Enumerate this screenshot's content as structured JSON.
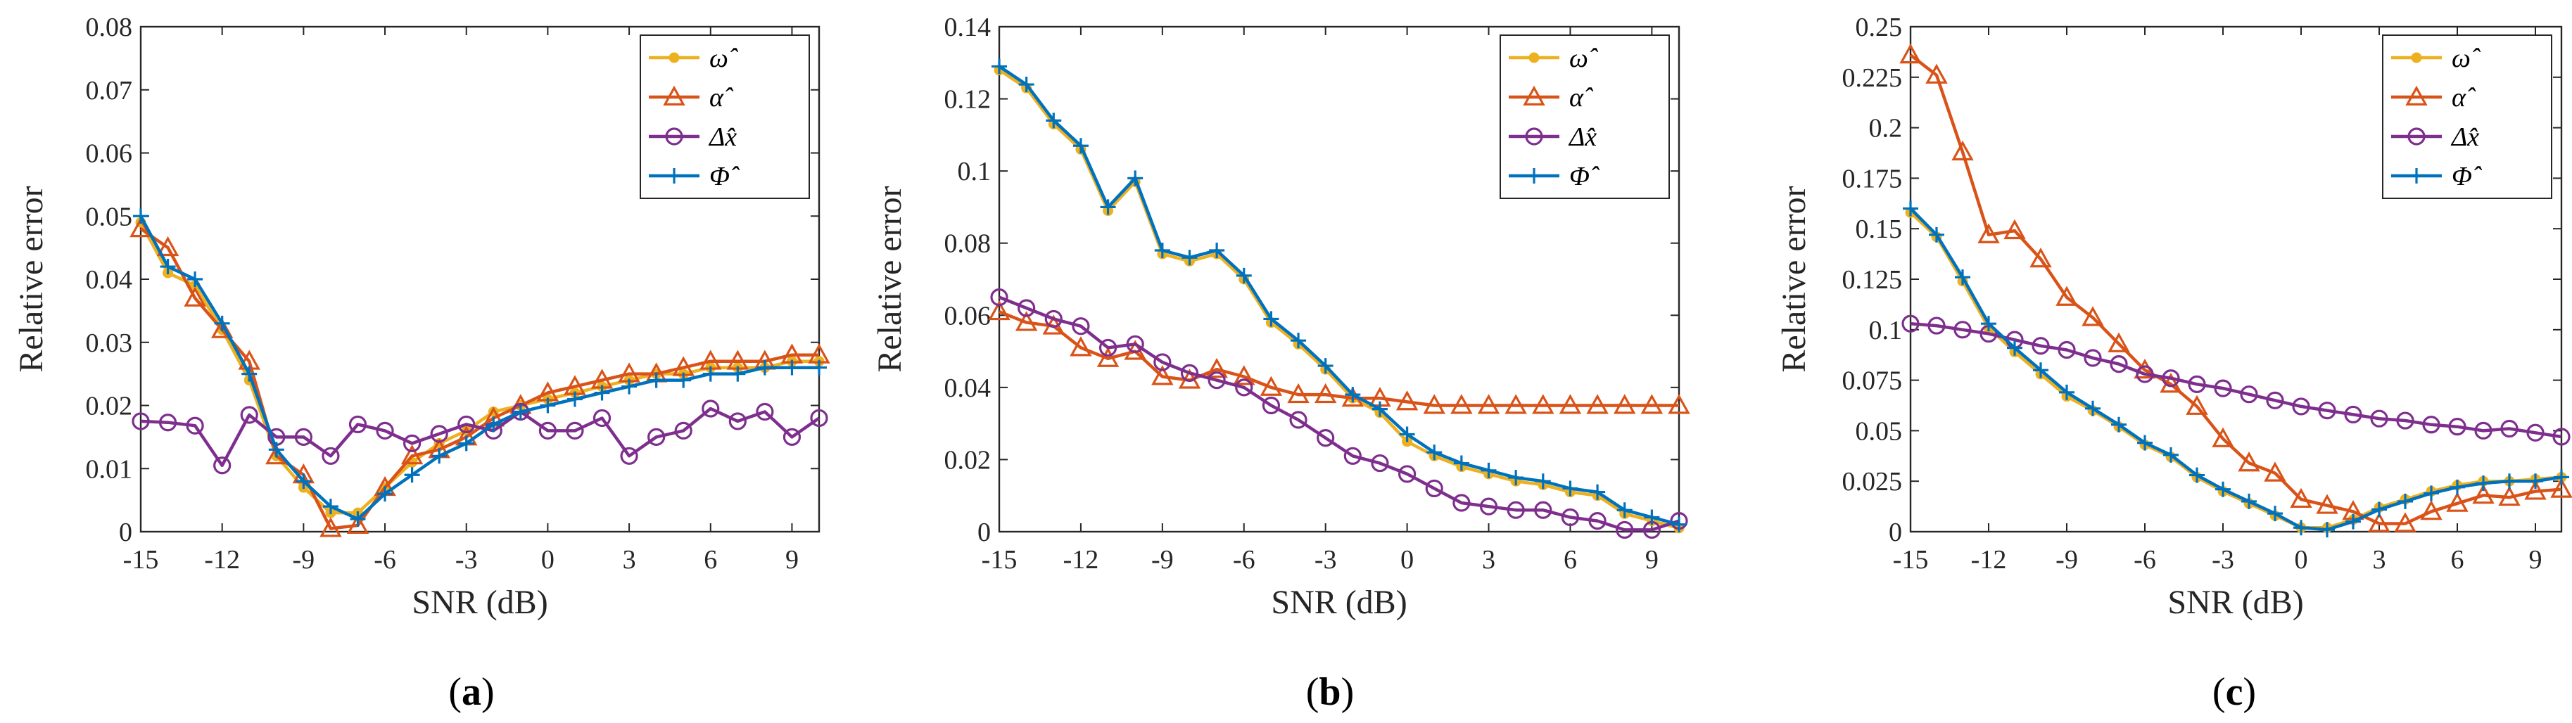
{
  "figure": {
    "panel_letters": [
      "a",
      "b",
      "c"
    ],
    "colors": {
      "omega": "#EDB120",
      "alpha": "#D95319",
      "dx": "#7E2F8E",
      "phi": "#0072BD",
      "axis": "#262626"
    }
  },
  "chart_data": [
    {
      "type": "line",
      "panel": "a",
      "title": "",
      "xlabel": "SNR (dB)",
      "ylabel": "Relative error",
      "xlim": [
        -15,
        10
      ],
      "ylim": [
        0,
        0.08
      ],
      "xticks": [
        -15,
        -12,
        -9,
        -6,
        -3,
        0,
        3,
        6,
        9
      ],
      "yticks": [
        0,
        0.01,
        0.02,
        0.03,
        0.04,
        0.05,
        0.06,
        0.07,
        0.08
      ],
      "ytick_labels": [
        "0",
        "0.01",
        "0.02",
        "0.03",
        "0.04",
        "0.05",
        "0.06",
        "0.07",
        "0.08"
      ],
      "grid": false,
      "legend_position": "top-right",
      "x": [
        -15,
        -14,
        -13,
        -12,
        -11,
        -10,
        -9,
        -8,
        -7,
        -6,
        -5,
        -4,
        -3,
        -2,
        -1,
        0,
        1,
        2,
        3,
        4,
        5,
        6,
        7,
        8,
        9,
        10
      ],
      "series": [
        {
          "name": "ω̂",
          "legend": "ω̂",
          "marker": "dot",
          "color_key": "omega",
          "values": [
            0.049,
            0.041,
            0.039,
            0.032,
            0.024,
            0.012,
            0.007,
            0.003,
            0.003,
            0.007,
            0.011,
            0.014,
            0.016,
            0.019,
            0.02,
            0.021,
            0.022,
            0.023,
            0.024,
            0.025,
            0.025,
            0.026,
            0.026,
            0.026,
            0.027,
            0.027
          ]
        },
        {
          "name": "α̂",
          "legend": "α̂",
          "marker": "triangle",
          "color_key": "alpha",
          "values": [
            0.048,
            0.045,
            0.037,
            0.032,
            0.027,
            0.012,
            0.009,
            0.0005,
            0.001,
            0.007,
            0.012,
            0.013,
            0.015,
            0.018,
            0.02,
            0.022,
            0.023,
            0.024,
            0.025,
            0.025,
            0.026,
            0.027,
            0.027,
            0.027,
            0.028,
            0.028
          ]
        },
        {
          "name": "Δx̂",
          "legend": "Δx̂",
          "marker": "circle",
          "color_key": "dx",
          "values": [
            0.0175,
            0.0173,
            0.0168,
            0.0105,
            0.0185,
            0.015,
            0.015,
            0.012,
            0.017,
            0.016,
            0.014,
            0.0155,
            0.017,
            0.016,
            0.019,
            0.016,
            0.016,
            0.018,
            0.012,
            0.015,
            0.016,
            0.0195,
            0.0175,
            0.019,
            0.015,
            0.018
          ]
        },
        {
          "name": "Φ̂",
          "legend": "Φ̂",
          "marker": "plus",
          "color_key": "phi",
          "values": [
            0.05,
            0.042,
            0.04,
            0.033,
            0.025,
            0.013,
            0.008,
            0.004,
            0.002,
            0.006,
            0.009,
            0.012,
            0.014,
            0.017,
            0.019,
            0.02,
            0.021,
            0.022,
            0.023,
            0.024,
            0.024,
            0.025,
            0.025,
            0.026,
            0.026,
            0.026
          ]
        }
      ]
    },
    {
      "type": "line",
      "panel": "b",
      "title": "",
      "xlabel": "SNR (dB)",
      "ylabel": "Relative error",
      "xlim": [
        -15,
        10
      ],
      "ylim": [
        0,
        0.14
      ],
      "xticks": [
        -15,
        -12,
        -9,
        -6,
        -3,
        0,
        3,
        6,
        9
      ],
      "yticks": [
        0,
        0.02,
        0.04,
        0.06,
        0.08,
        0.1,
        0.12,
        0.14
      ],
      "ytick_labels": [
        "0",
        "0.02",
        "0.04",
        "0.06",
        "0.08",
        "0.1",
        "0.12",
        "0.14"
      ],
      "grid": false,
      "legend_position": "top-right",
      "x": [
        -15,
        -14,
        -13,
        -12,
        -11,
        -10,
        -9,
        -8,
        -7,
        -6,
        -5,
        -4,
        -3,
        -2,
        -1,
        0,
        1,
        2,
        3,
        4,
        5,
        6,
        7,
        8,
        9,
        10
      ],
      "series": [
        {
          "name": "ω̂",
          "legend": "ω̂",
          "marker": "dot",
          "color_key": "omega",
          "values": [
            0.128,
            0.123,
            0.113,
            0.106,
            0.089,
            0.097,
            0.077,
            0.075,
            0.077,
            0.07,
            0.058,
            0.052,
            0.045,
            0.037,
            0.033,
            0.025,
            0.021,
            0.018,
            0.016,
            0.014,
            0.013,
            0.011,
            0.01,
            0.005,
            0.003,
            0.001
          ]
        },
        {
          "name": "α̂",
          "legend": "α̂",
          "marker": "triangle",
          "color_key": "alpha",
          "values": [
            0.061,
            0.058,
            0.057,
            0.051,
            0.048,
            0.05,
            0.043,
            0.042,
            0.045,
            0.043,
            0.04,
            0.038,
            0.038,
            0.037,
            0.037,
            0.036,
            0.035,
            0.035,
            0.035,
            0.035,
            0.035,
            0.035,
            0.035,
            0.035,
            0.035,
            0.035
          ]
        },
        {
          "name": "Δx̂",
          "legend": "Δx̂",
          "marker": "circle",
          "color_key": "dx",
          "values": [
            0.065,
            0.062,
            0.059,
            0.057,
            0.051,
            0.052,
            0.047,
            0.044,
            0.042,
            0.04,
            0.035,
            0.031,
            0.026,
            0.021,
            0.019,
            0.016,
            0.012,
            0.008,
            0.007,
            0.006,
            0.006,
            0.004,
            0.003,
            0.0005,
            0.0005,
            0.003
          ]
        },
        {
          "name": "Φ̂",
          "legend": "Φ̂",
          "marker": "plus",
          "color_key": "phi",
          "values": [
            0.129,
            0.124,
            0.114,
            0.107,
            0.09,
            0.098,
            0.078,
            0.076,
            0.078,
            0.071,
            0.059,
            0.053,
            0.046,
            0.038,
            0.034,
            0.027,
            0.022,
            0.019,
            0.017,
            0.015,
            0.014,
            0.012,
            0.011,
            0.006,
            0.004,
            0.002
          ]
        }
      ]
    },
    {
      "type": "line",
      "panel": "c",
      "title": "",
      "xlabel": "SNR (dB)",
      "ylabel": "Relative error",
      "xlim": [
        -15,
        10
      ],
      "ylim": [
        0,
        0.25
      ],
      "xticks": [
        -15,
        -12,
        -9,
        -6,
        -3,
        0,
        3,
        6,
        9
      ],
      "yticks": [
        0,
        0.025,
        0.05,
        0.075,
        0.1,
        0.125,
        0.15,
        0.175,
        0.2,
        0.225,
        0.25
      ],
      "ytick_labels": [
        "0",
        "0.025",
        "0.05",
        "0.075",
        "0.1",
        "0.125",
        "0.15",
        "0.175",
        "0.2",
        "0.225",
        "0.25"
      ],
      "grid": false,
      "legend_position": "top-right",
      "x": [
        -15,
        -14,
        -13,
        -12,
        -11,
        -10,
        -9,
        -8,
        -7,
        -6,
        -5,
        -4,
        -3,
        -2,
        -1,
        0,
        1,
        2,
        3,
        4,
        5,
        6,
        7,
        8,
        9,
        10
      ],
      "series": [
        {
          "name": "ω̂",
          "legend": "ω̂",
          "marker": "dot",
          "color_key": "omega",
          "values": [
            0.158,
            0.146,
            0.124,
            0.101,
            0.089,
            0.078,
            0.067,
            0.06,
            0.052,
            0.043,
            0.037,
            0.027,
            0.02,
            0.014,
            0.008,
            0.002,
            0.002,
            0.006,
            0.012,
            0.016,
            0.02,
            0.023,
            0.025,
            0.025,
            0.026,
            0.027
          ]
        },
        {
          "name": "α̂",
          "legend": "α̂",
          "marker": "triangle",
          "color_key": "alpha",
          "values": [
            0.236,
            0.226,
            0.188,
            0.147,
            0.149,
            0.135,
            0.116,
            0.106,
            0.093,
            0.08,
            0.073,
            0.062,
            0.046,
            0.034,
            0.029,
            0.016,
            0.013,
            0.01,
            0.004,
            0.004,
            0.01,
            0.014,
            0.018,
            0.017,
            0.02,
            0.021
          ]
        },
        {
          "name": "Δx̂",
          "legend": "Δx̂",
          "marker": "circle",
          "color_key": "dx",
          "values": [
            0.103,
            0.102,
            0.1,
            0.098,
            0.095,
            0.092,
            0.09,
            0.086,
            0.083,
            0.078,
            0.076,
            0.073,
            0.071,
            0.068,
            0.065,
            0.062,
            0.06,
            0.058,
            0.056,
            0.055,
            0.053,
            0.052,
            0.05,
            0.051,
            0.049,
            0.047
          ]
        },
        {
          "name": "Φ̂",
          "legend": "Φ̂",
          "marker": "plus",
          "color_key": "phi",
          "values": [
            0.16,
            0.147,
            0.126,
            0.103,
            0.091,
            0.08,
            0.069,
            0.061,
            0.053,
            0.044,
            0.038,
            0.028,
            0.021,
            0.015,
            0.009,
            0.002,
            0.001,
            0.005,
            0.011,
            0.015,
            0.019,
            0.022,
            0.024,
            0.025,
            0.025,
            0.027
          ]
        }
      ]
    }
  ]
}
